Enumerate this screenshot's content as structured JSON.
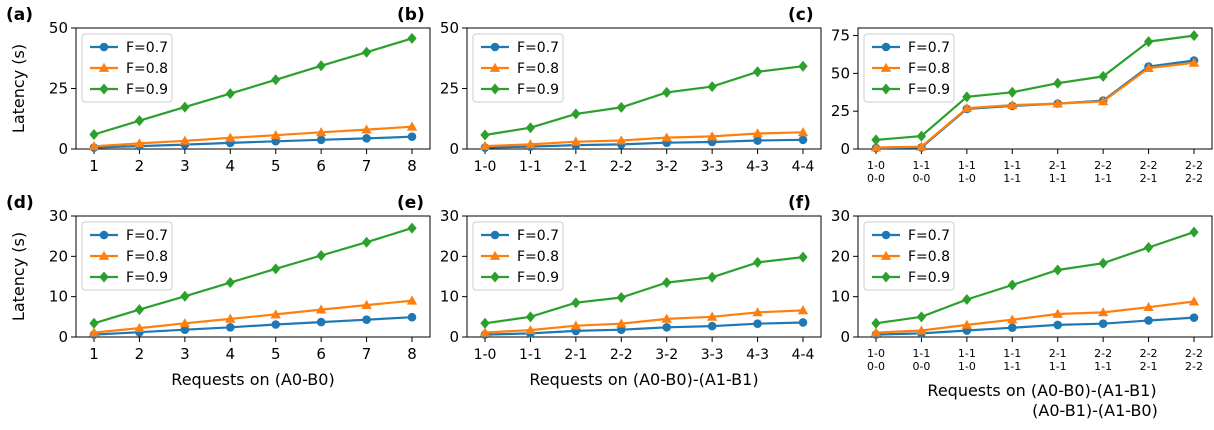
{
  "colors": {
    "F=0.7": "#1f77b4",
    "F=0.8": "#ff7f0e",
    "F=0.9": "#2ca02c"
  },
  "markers": {
    "F=0.7": "circle",
    "F=0.8": "triangle-up",
    "F=0.9": "diamond"
  },
  "chart_data": [
    {
      "panel": "(a)",
      "type": "line",
      "categories": [
        "1",
        "2",
        "3",
        "4",
        "5",
        "6",
        "7",
        "8"
      ],
      "ylabel": "Latency (s)",
      "xlabel": "",
      "ylim": [
        0,
        50
      ],
      "yticks": [
        0,
        25,
        50
      ],
      "legend": "top-left",
      "series": [
        {
          "name": "F=0.7",
          "values": [
            0.6,
            1.2,
            1.8,
            2.5,
            3.2,
            3.8,
            4.4,
            5.1
          ]
        },
        {
          "name": "F=0.8",
          "values": [
            1.1,
            2.3,
            3.4,
            4.6,
            5.7,
            6.9,
            8.0,
            9.2
          ]
        },
        {
          "name": "F=0.9",
          "values": [
            6.0,
            11.7,
            17.3,
            22.9,
            28.6,
            34.4,
            40.0,
            45.7
          ]
        }
      ]
    },
    {
      "panel": "(b)",
      "type": "line",
      "categories": [
        "1-0",
        "1-1",
        "2-1",
        "2-2",
        "3-2",
        "3-3",
        "4-3",
        "4-4"
      ],
      "ylabel": "",
      "xlabel": "",
      "ylim": [
        0,
        50
      ],
      "yticks": [
        0,
        25,
        50
      ],
      "legend": "top-left",
      "series": [
        {
          "name": "F=0.7",
          "values": [
            0.6,
            1.0,
            1.6,
            1.9,
            2.6,
            2.9,
            3.5,
            3.8
          ]
        },
        {
          "name": "F=0.8",
          "values": [
            1.2,
            1.9,
            3.0,
            3.5,
            4.7,
            5.2,
            6.4,
            6.9
          ]
        },
        {
          "name": "F=0.9",
          "values": [
            5.8,
            8.8,
            14.5,
            17.2,
            23.4,
            25.8,
            31.9,
            34.2
          ]
        }
      ]
    },
    {
      "panel": "(c)",
      "type": "line",
      "categories": [
        [
          "1-0",
          "0-0"
        ],
        [
          "1-1",
          "0-0"
        ],
        [
          "1-1",
          "1-0"
        ],
        [
          "1-1",
          "1-1"
        ],
        [
          "2-1",
          "1-1"
        ],
        [
          "2-2",
          "1-1"
        ],
        [
          "2-2",
          "2-1"
        ],
        [
          "2-2",
          "2-2"
        ]
      ],
      "ylabel": "",
      "xlabel": "",
      "ylim": [
        0,
        80
      ],
      "yticks": [
        0,
        25,
        50,
        75
      ],
      "legend": "top-left",
      "series": [
        {
          "name": "F=0.7",
          "values": [
            0.6,
            1.0,
            26.5,
            28.5,
            30.0,
            32.0,
            54.5,
            58.5
          ]
        },
        {
          "name": "F=0.8",
          "values": [
            1.0,
            1.5,
            27.0,
            29.0,
            30.0,
            31.5,
            53.5,
            57.0
          ]
        },
        {
          "name": "F=0.9",
          "values": [
            6.0,
            8.5,
            34.5,
            37.5,
            43.5,
            48.0,
            71.0,
            75.0
          ]
        }
      ]
    },
    {
      "panel": "(d)",
      "type": "line",
      "categories": [
        "1",
        "2",
        "3",
        "4",
        "5",
        "6",
        "7",
        "8"
      ],
      "ylabel": "Latency (s)",
      "xlabel": "Requests on (A0-B0)",
      "ylim": [
        0,
        30
      ],
      "yticks": [
        0,
        10,
        20,
        30
      ],
      "legend": "top-left",
      "series": [
        {
          "name": "F=0.7",
          "values": [
            0.6,
            1.2,
            1.8,
            2.4,
            3.1,
            3.7,
            4.3,
            4.9
          ]
        },
        {
          "name": "F=0.8",
          "values": [
            1.1,
            2.2,
            3.4,
            4.5,
            5.6,
            6.8,
            7.9,
            9.0
          ]
        },
        {
          "name": "F=0.9",
          "values": [
            3.4,
            6.8,
            10.1,
            13.5,
            16.9,
            20.2,
            23.5,
            27.0
          ]
        }
      ]
    },
    {
      "panel": "(e)",
      "type": "line",
      "categories": [
        "1-0",
        "1-1",
        "2-1",
        "2-2",
        "3-2",
        "3-3",
        "4-3",
        "4-4"
      ],
      "ylabel": "",
      "xlabel": "Requests on (A0-B0)-(A1-B1)",
      "ylim": [
        0,
        30
      ],
      "yticks": [
        0,
        10,
        20,
        30
      ],
      "legend": "top-left",
      "series": [
        {
          "name": "F=0.7",
          "values": [
            0.6,
            0.9,
            1.5,
            1.8,
            2.4,
            2.7,
            3.3,
            3.6
          ]
        },
        {
          "name": "F=0.8",
          "values": [
            1.1,
            1.7,
            2.8,
            3.3,
            4.5,
            5.0,
            6.1,
            6.6
          ]
        },
        {
          "name": "F=0.9",
          "values": [
            3.4,
            5.0,
            8.5,
            9.8,
            13.5,
            14.8,
            18.5,
            19.8
          ]
        }
      ]
    },
    {
      "panel": "(f)",
      "type": "line",
      "categories": [
        [
          "1-0",
          "0-0"
        ],
        [
          "1-1",
          "0-0"
        ],
        [
          "1-1",
          "1-0"
        ],
        [
          "1-1",
          "1-1"
        ],
        [
          "2-1",
          "1-1"
        ],
        [
          "2-2",
          "1-1"
        ],
        [
          "2-2",
          "2-1"
        ],
        [
          "2-2",
          "2-2"
        ]
      ],
      "ylabel": "",
      "xlabel": [
        "Requests on (A0-B0)-(A1-B1)",
        "(A0-B1)-(A1-B0)"
      ],
      "ylim": [
        0,
        30
      ],
      "yticks": [
        0,
        10,
        20,
        30
      ],
      "legend": "top-left",
      "series": [
        {
          "name": "F=0.7",
          "values": [
            0.6,
            0.9,
            1.6,
            2.3,
            3.0,
            3.3,
            4.1,
            4.8
          ]
        },
        {
          "name": "F=0.8",
          "values": [
            1.1,
            1.6,
            3.0,
            4.3,
            5.7,
            6.1,
            7.4,
            8.8
          ]
        },
        {
          "name": "F=0.9",
          "values": [
            3.4,
            5.0,
            9.3,
            12.9,
            16.6,
            18.3,
            22.2,
            26.0
          ]
        }
      ]
    }
  ]
}
